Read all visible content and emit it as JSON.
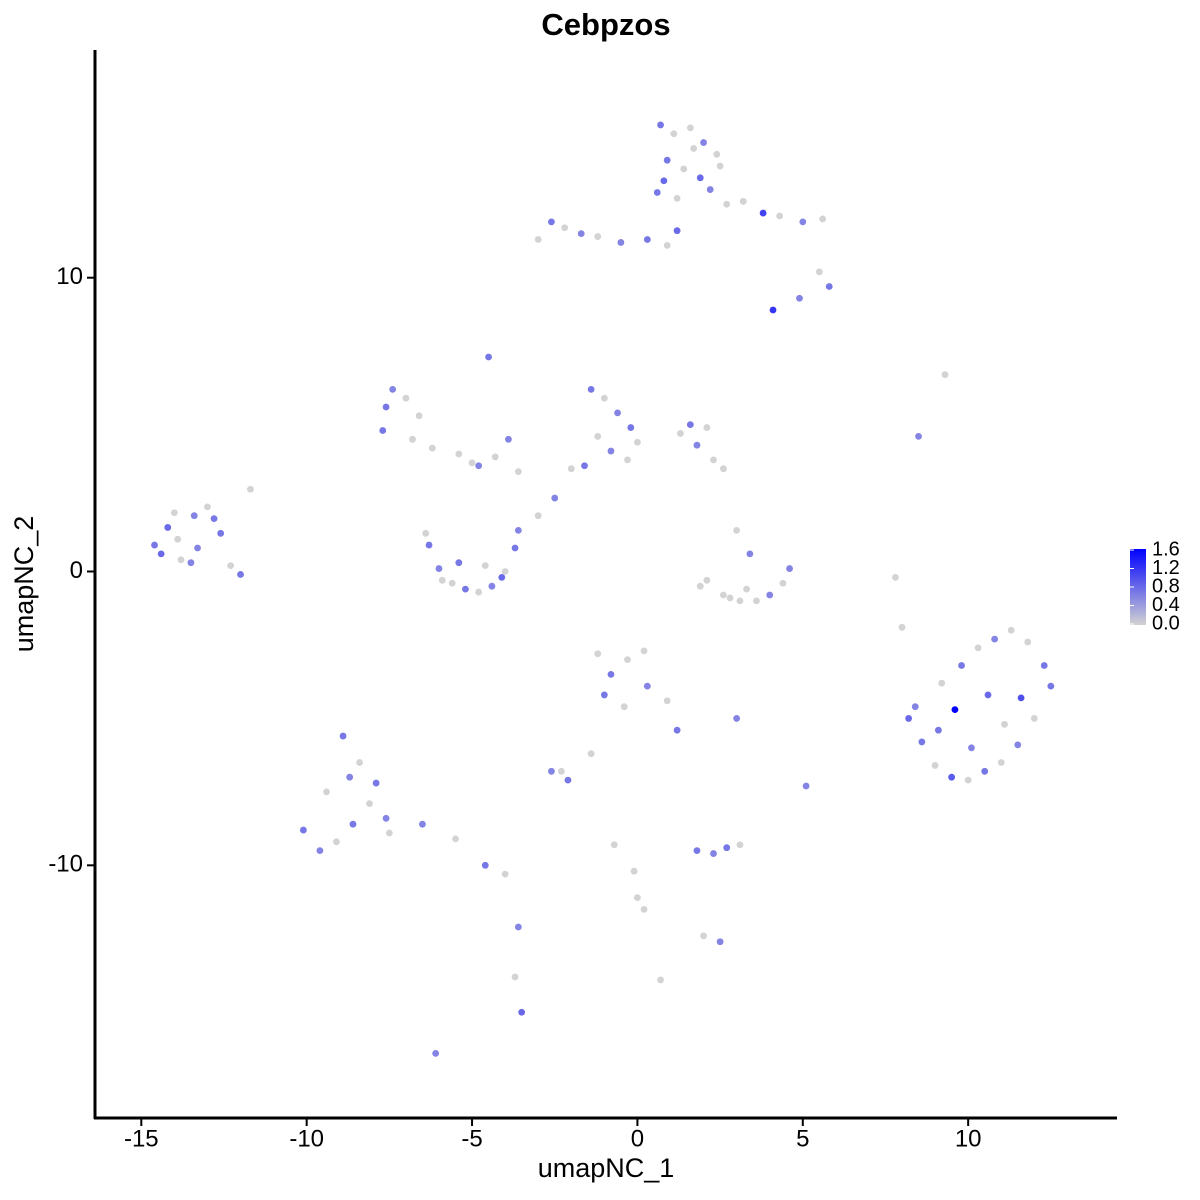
{
  "chart_data": {
    "type": "scatter",
    "title": "Cebpzos",
    "xlabel": "umapNC_1",
    "ylabel": "umapNC_2",
    "xlim": [
      -16.4,
      14.5
    ],
    "ylim": [
      -18.6,
      17.75
    ],
    "xticks": [
      -15,
      -10,
      -5,
      0,
      5,
      10
    ],
    "yticks": [
      -10,
      0,
      10
    ],
    "color_scale": {
      "colors": [
        "#d3d3d3",
        "#0000ff"
      ],
      "lim": [
        0,
        1.6
      ],
      "ticks": [
        {
          "value": 0,
          "label": "0.0"
        },
        0.4,
        0.8,
        1.2,
        1.6
      ]
    },
    "series": [
      {
        "x": [
          -14.6,
          -14.2,
          -13.8,
          -13.4,
          -13.0,
          -12.6,
          -14.4,
          -13.9,
          -13.3,
          -12.8,
          -14.0,
          -13.5,
          -12.3,
          -12.0,
          -11.7
        ],
        "y": [
          0.9,
          1.5,
          0.4,
          1.9,
          2.2,
          1.3,
          0.6,
          1.1,
          0.8,
          1.8,
          2.0,
          0.3,
          0.2,
          -0.1,
          2.8
        ],
        "values": [
          0.7,
          0.8,
          0,
          0.6,
          0,
          0.7,
          0.8,
          0,
          0.6,
          0.7,
          0,
          0.6,
          0,
          0.7,
          0
        ]
      },
      {
        "x": [
          0.7,
          1.1,
          1.6,
          2.0,
          2.4,
          0.9,
          1.4,
          1.9,
          2.5,
          0.6,
          1.2,
          2.2,
          1.7,
          0.8,
          2.7
        ],
        "y": [
          15.2,
          14.9,
          15.1,
          14.6,
          14.2,
          14.0,
          13.7,
          13.4,
          13.8,
          12.9,
          12.7,
          13.0,
          14.4,
          13.3,
          12.5
        ],
        "values": [
          0.7,
          0,
          0,
          0.6,
          0,
          0.7,
          0,
          0.8,
          0,
          0.7,
          0,
          0.6,
          0,
          0.8,
          0
        ]
      },
      {
        "x": [
          -3.0,
          -2.6,
          -2.2,
          -1.7,
          -1.2,
          -0.5,
          0.3,
          0.9,
          1.2,
          3.2,
          3.8,
          4.3,
          5.0,
          5.5,
          5.8,
          4.9,
          4.1,
          5.6
        ],
        "y": [
          11.3,
          11.9,
          11.7,
          11.5,
          11.4,
          11.2,
          11.3,
          11.1,
          11.6,
          12.6,
          12.2,
          12.1,
          11.9,
          10.2,
          9.7,
          9.3,
          8.9,
          12.0
        ],
        "values": [
          0,
          0.7,
          0,
          0.6,
          0,
          0.6,
          0.7,
          0,
          0.8,
          0,
          1.1,
          0,
          0.6,
          0,
          0.7,
          0.6,
          1.2,
          0
        ]
      },
      {
        "x": [
          -7.6,
          -7.4,
          -7.0,
          -6.6,
          -7.7,
          -6.8,
          -6.2,
          -5.4,
          -4.8,
          -4.3,
          -3.9,
          -4.5,
          -5.0,
          -3.6
        ],
        "y": [
          5.6,
          6.2,
          5.9,
          5.3,
          4.8,
          4.5,
          4.2,
          4.0,
          3.6,
          3.9,
          4.5,
          7.3,
          3.7,
          3.4
        ],
        "values": [
          0.7,
          0.6,
          0,
          0,
          0.7,
          0,
          0,
          0,
          0.6,
          0,
          0.6,
          0.7,
          0,
          0
        ]
      },
      {
        "x": [
          -1.4,
          -1.0,
          -0.6,
          -0.2,
          -1.2,
          -0.8,
          -0.3,
          0.0,
          -1.6,
          -2.0,
          -2.5,
          1.3,
          1.8,
          2.3,
          2.6,
          1.6,
          2.1,
          -3.0
        ],
        "y": [
          6.2,
          5.9,
          5.4,
          4.9,
          4.6,
          4.1,
          3.8,
          4.4,
          3.6,
          3.5,
          2.5,
          4.7,
          4.3,
          3.8,
          3.5,
          5.0,
          4.9,
          1.9
        ],
        "values": [
          0.7,
          0,
          0.6,
          0.7,
          0,
          0.6,
          0,
          0,
          0.7,
          0,
          0.6,
          0,
          0.6,
          0,
          0,
          0.7,
          0,
          0
        ]
      },
      {
        "x": [
          -6.3,
          -6.0,
          -5.6,
          -5.2,
          -4.8,
          -4.4,
          -4.0,
          -3.7,
          -3.6,
          -6.4,
          -5.4,
          -4.6,
          -4.1,
          -5.9
        ],
        "y": [
          0.9,
          0.1,
          -0.4,
          -0.6,
          -0.7,
          -0.5,
          0.0,
          0.8,
          1.4,
          1.3,
          0.3,
          0.2,
          -0.2,
          -0.3
        ],
        "values": [
          0.7,
          0.6,
          0,
          0.7,
          0,
          0.6,
          0,
          0.7,
          0.6,
          0,
          0.7,
          0,
          0.8,
          0
        ]
      },
      {
        "x": [
          2.1,
          2.6,
          3.1,
          3.6,
          4.0,
          4.4,
          4.6,
          3.3,
          2.8,
          3.0,
          3.4,
          1.9
        ],
        "y": [
          -0.3,
          -0.8,
          -1.0,
          -1.0,
          -0.8,
          -0.4,
          0.1,
          -0.6,
          -0.9,
          1.4,
          0.6,
          -0.5
        ],
        "values": [
          0,
          0,
          0,
          0,
          0.6,
          0,
          0.6,
          0,
          0,
          0,
          0.6,
          0
        ]
      },
      {
        "x": [
          8.2,
          8.6,
          9.0,
          9.5,
          10.0,
          10.5,
          11.0,
          11.5,
          12.0,
          12.5,
          8.4,
          9.2,
          9.8,
          10.3,
          10.8,
          11.3,
          11.8,
          12.3,
          9.6,
          10.6,
          11.1,
          9.1,
          10.1,
          11.6
        ],
        "y": [
          -5.0,
          -5.8,
          -6.6,
          -7.0,
          -7.1,
          -6.8,
          -6.5,
          -5.9,
          -5.0,
          -3.9,
          -4.6,
          -3.8,
          -3.2,
          -2.6,
          -2.3,
          -2.0,
          -2.4,
          -3.2,
          -4.7,
          -4.2,
          -5.2,
          -5.4,
          -6.0,
          -4.3
        ],
        "values": [
          0.8,
          0.7,
          0,
          0.9,
          0,
          0.7,
          0,
          0.6,
          0,
          0.7,
          0.6,
          0,
          0.7,
          0,
          0.6,
          0,
          0,
          0.7,
          1.6,
          0.8,
          0,
          0.7,
          0.6,
          1.0
        ]
      },
      {
        "x": [
          -10.1,
          -9.6,
          -9.1,
          -8.6,
          -8.1,
          -7.6,
          -8.9,
          -8.4,
          -7.9,
          -9.4,
          -8.7,
          -7.5,
          -6.5,
          -5.5,
          -4.6,
          -4.0,
          -3.6,
          -3.7,
          -3.5,
          -6.1
        ],
        "y": [
          -8.8,
          -9.5,
          -9.2,
          -8.6,
          -7.9,
          -8.4,
          -5.6,
          -6.5,
          -7.2,
          -7.5,
          -7.0,
          -8.9,
          -8.6,
          -9.1,
          -10.0,
          -10.3,
          -12.1,
          -13.8,
          -15.0,
          -16.4
        ],
        "values": [
          0.7,
          0.6,
          0,
          0.7,
          0,
          0.6,
          0.7,
          0,
          0.7,
          0,
          0.6,
          0,
          0.6,
          0,
          0.7,
          0,
          0.6,
          0,
          0.8,
          0.6
        ]
      },
      {
        "x": [
          -1.2,
          -0.8,
          -0.3,
          0.3,
          0.9,
          1.2,
          -1.0,
          -0.4,
          0.2,
          -1.4,
          -2.6,
          -2.3,
          -2.1
        ],
        "y": [
          -2.8,
          -3.5,
          -3.0,
          -3.9,
          -4.4,
          -5.4,
          -4.2,
          -4.6,
          -2.7,
          -6.2,
          -6.8,
          -6.8,
          -7.1
        ],
        "values": [
          0,
          0.7,
          0,
          0.6,
          0,
          0.7,
          0.7,
          0,
          0,
          0,
          0.6,
          0,
          0.7
        ]
      },
      {
        "x": [
          1.8,
          2.3,
          2.7,
          3.1,
          2.0,
          2.5,
          0.2,
          -0.7,
          -0.1,
          0.0,
          0.7,
          3.0,
          5.1,
          7.8,
          8.0,
          9.3,
          8.5
        ],
        "y": [
          -9.5,
          -9.6,
          -9.4,
          -9.3,
          -12.4,
          -12.6,
          -11.5,
          -9.3,
          -10.2,
          -11.1,
          -13.9,
          -5.0,
          -7.3,
          -0.2,
          -1.9,
          6.7,
          4.6
        ],
        "values": [
          0.7,
          0.6,
          0.7,
          0,
          0,
          0.6,
          0,
          0,
          0,
          0,
          0,
          0.6,
          0.6,
          0,
          0,
          0,
          0.6
        ]
      }
    ]
  }
}
